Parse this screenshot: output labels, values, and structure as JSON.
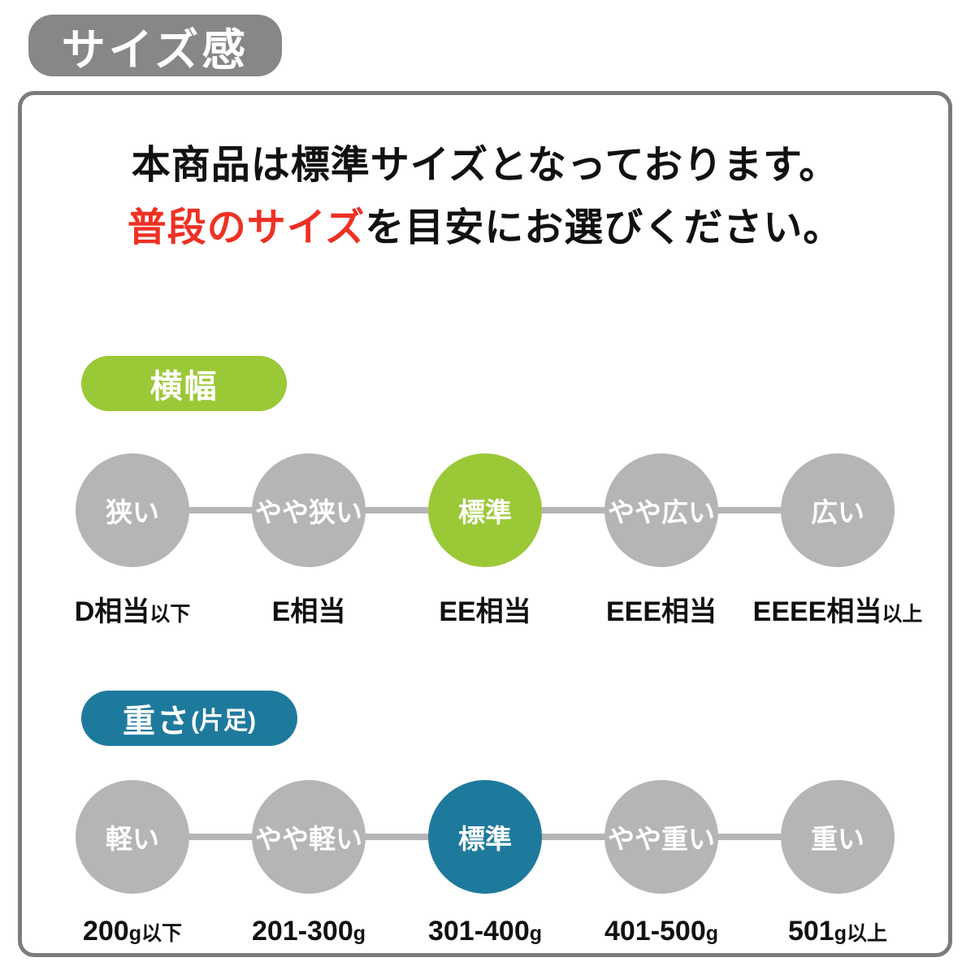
{
  "title_badge": "サイズ感",
  "colors": {
    "accent_green": "#9bc837",
    "accent_teal": "#1e7a9c",
    "circle_gray": "#b5b5b5",
    "badge_gray": "#878787",
    "highlight_red": "#ee3124",
    "border_gray": "#7b7b7b"
  },
  "intro": {
    "line1": "本商品は標準サイズとなっております。",
    "line2_highlight": "普段のサイズ",
    "line2_rest": "を目安にお選びください。"
  },
  "sections": [
    {
      "badge_label": "横幅",
      "badge_note": "",
      "items": [
        {
          "circle_label": "狭い",
          "value": "D相当",
          "value_note": "以下",
          "selected": false
        },
        {
          "circle_label": "やや狭い",
          "value": "E相当",
          "value_note": "",
          "selected": false
        },
        {
          "circle_label": "標準",
          "value": "EE相当",
          "value_note": "",
          "selected": true
        },
        {
          "circle_label": "やや広い",
          "value": "EEE相当",
          "value_note": "",
          "selected": false
        },
        {
          "circle_label": "広い",
          "value": "EEEE相当",
          "value_note": "以上",
          "selected": false
        }
      ]
    },
    {
      "badge_label": "重さ",
      "badge_note": "(片足)",
      "items": [
        {
          "circle_label": "軽い",
          "value": "200",
          "value_note": "g以下",
          "selected": false
        },
        {
          "circle_label": "やや軽い",
          "value": "201-300",
          "value_note": "g",
          "selected": false
        },
        {
          "circle_label": "標準",
          "value": "301-400",
          "value_note": "g",
          "selected": true
        },
        {
          "circle_label": "やや重い",
          "value": "401-500",
          "value_note": "g",
          "selected": false
        },
        {
          "circle_label": "重い",
          "value": "501",
          "value_note": "g以上",
          "selected": false
        }
      ]
    }
  ]
}
